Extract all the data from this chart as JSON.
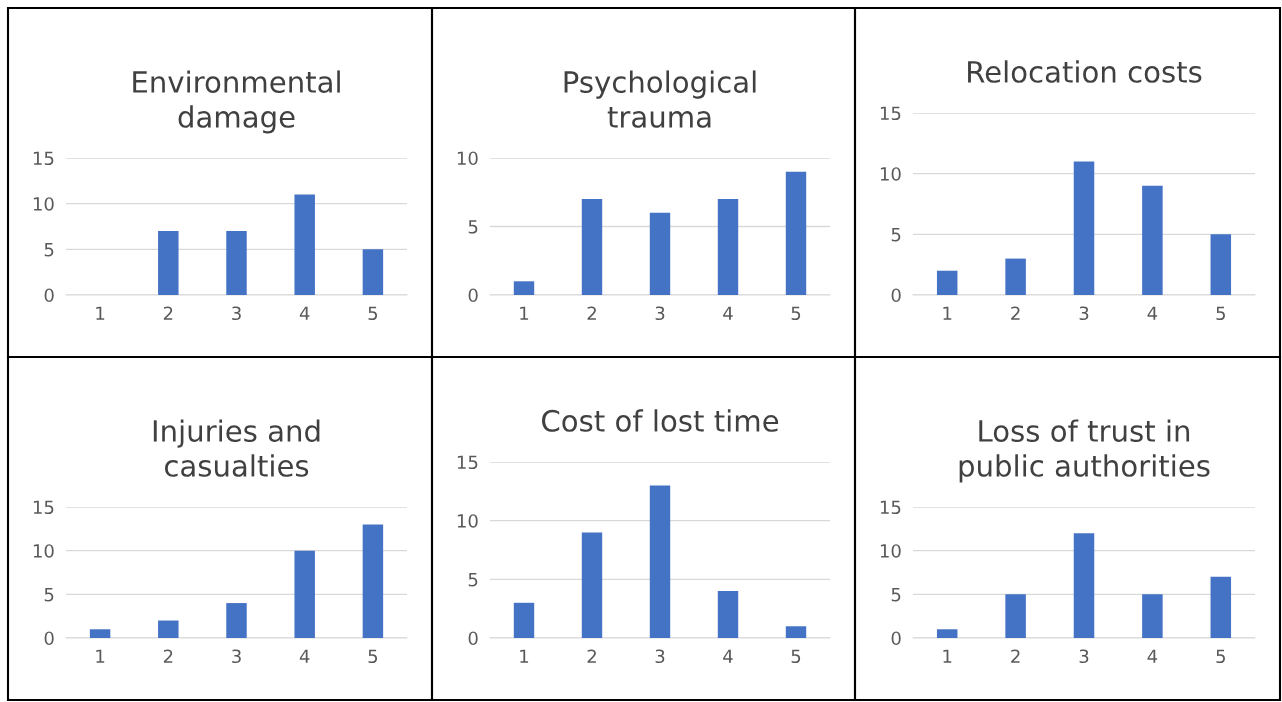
{
  "chart_data": [
    {
      "type": "bar",
      "title": "Environmental\ndamage",
      "categories": [
        "1",
        "2",
        "3",
        "4",
        "5"
      ],
      "values": [
        0,
        7,
        7,
        11,
        5
      ],
      "color": "#4472c4",
      "ylim": [
        0,
        15
      ],
      "yticks": [
        0,
        5,
        10,
        15
      ],
      "grid": "y"
    },
    {
      "type": "bar",
      "title": "Psychological\ntrauma",
      "categories": [
        "1",
        "2",
        "3",
        "4",
        "5"
      ],
      "values": [
        1,
        7,
        6,
        7,
        9
      ],
      "color": "#4472c4",
      "ylim": [
        0,
        10
      ],
      "yticks": [
        0,
        5,
        10
      ],
      "grid": "y"
    },
    {
      "type": "bar",
      "title": "Relocation costs",
      "categories": [
        "1",
        "2",
        "3",
        "4",
        "5"
      ],
      "values": [
        2,
        3,
        11,
        9,
        5
      ],
      "color": "#4472c4",
      "ylim": [
        0,
        15
      ],
      "yticks": [
        0,
        5,
        10,
        15
      ],
      "grid": "y"
    },
    {
      "type": "bar",
      "title": "Injuries and\ncasualties",
      "categories": [
        "1",
        "2",
        "3",
        "4",
        "5"
      ],
      "values": [
        1,
        2,
        4,
        10,
        13
      ],
      "color": "#4472c4",
      "ylim": [
        0,
        15
      ],
      "yticks": [
        0,
        5,
        10,
        15
      ],
      "grid": "y"
    },
    {
      "type": "bar",
      "title": "Cost of lost time",
      "categories": [
        "1",
        "2",
        "3",
        "4",
        "5"
      ],
      "values": [
        3,
        9,
        13,
        4,
        1
      ],
      "color": "#4472c4",
      "ylim": [
        0,
        15
      ],
      "yticks": [
        0,
        5,
        10,
        15
      ],
      "grid": "y"
    },
    {
      "type": "bar",
      "title": "Loss of trust in\npublic authorities",
      "categories": [
        "1",
        "2",
        "3",
        "4",
        "5"
      ],
      "values": [
        1,
        5,
        12,
        5,
        7
      ],
      "color": "#4472c4",
      "ylim": [
        0,
        15
      ],
      "yticks": [
        0,
        5,
        10,
        15
      ],
      "grid": "y"
    }
  ]
}
